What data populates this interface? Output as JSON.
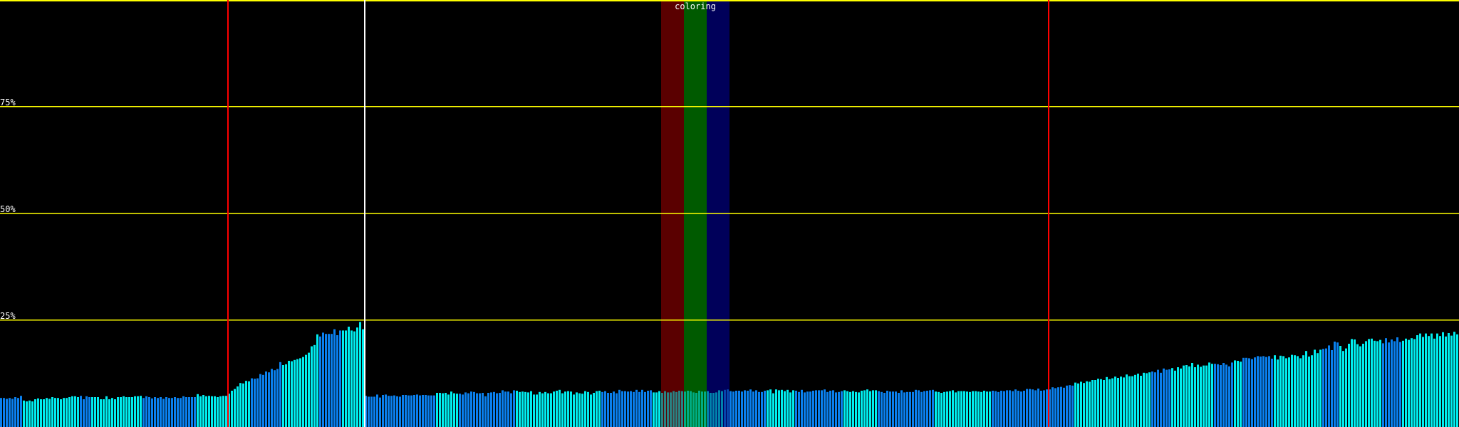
{
  "chart_data": {
    "type": "bar",
    "title": "",
    "ylim": [
      0,
      100
    ],
    "grid": true,
    "y_ticks": [
      {
        "value": 75,
        "label": "75%"
      },
      {
        "value": 50,
        "label": "50%"
      },
      {
        "value": 25,
        "label": "25%"
      }
    ],
    "annotation": {
      "label": "coloring",
      "band_colors": [
        "#5a0000",
        "#005a00",
        "#00005a"
      ],
      "bar_range": [
        232,
        256
      ]
    },
    "markers": [
      {
        "bar_index": 80,
        "color": "#ff0000"
      },
      {
        "bar_index": 128,
        "color": "#ffffff"
      },
      {
        "bar_index": 368,
        "color": "#ff0000"
      }
    ],
    "colors": {
      "cyan": "#00eef0",
      "blue": "#0a80ee",
      "grid": "#ffff00",
      "background": "#000000"
    },
    "color_runs": [
      [
        "blue",
        8
      ],
      [
        "cyan",
        20
      ],
      [
        "blue",
        4
      ],
      [
        "cyan",
        18
      ],
      [
        "blue",
        19
      ],
      [
        "cyan",
        11
      ],
      [
        "cyan",
        8
      ],
      [
        "blue",
        11
      ],
      [
        "cyan",
        13
      ],
      [
        "blue",
        8
      ],
      [
        "cyan",
        8
      ],
      [
        "blue",
        25
      ],
      [
        "cyan",
        8
      ],
      [
        "blue",
        20
      ],
      [
        "cyan",
        30
      ],
      [
        "blue",
        18
      ],
      [
        "cyan",
        25
      ],
      [
        "blue",
        15
      ],
      [
        "cyan",
        10
      ],
      [
        "blue",
        17
      ],
      [
        "cyan",
        12
      ],
      [
        "blue",
        20
      ],
      [
        "cyan",
        20
      ],
      [
        "blue",
        20
      ],
      [
        "blue",
        9
      ],
      [
        "cyan",
        27
      ],
      [
        "blue",
        7
      ],
      [
        "cyan",
        15
      ],
      [
        "blue",
        7
      ],
      [
        "cyan",
        3
      ],
      [
        "blue",
        11
      ],
      [
        "cyan",
        17
      ],
      [
        "blue",
        6
      ],
      [
        "cyan",
        15
      ],
      [
        "blue",
        7
      ],
      [
        "cyan",
        20
      ]
    ],
    "values": [
      6.8,
      6.8,
      6.6,
      6.8,
      6.6,
      7.0,
      6.8,
      7.3,
      6.2,
      6.0,
      6.2,
      6.0,
      6.5,
      6.7,
      6.5,
      6.5,
      6.8,
      6.6,
      7.0,
      6.8,
      6.8,
      6.5,
      6.8,
      6.8,
      7.0,
      7.2,
      7.2,
      7.0,
      7.3,
      6.5,
      7.2,
      7.0,
      7.0,
      7.0,
      7.0,
      6.5,
      6.5,
      7.2,
      6.5,
      6.8,
      6.5,
      7.0,
      7.0,
      7.2,
      7.0,
      7.0,
      7.0,
      7.2,
      7.2,
      7.3,
      6.8,
      7.2,
      7.0,
      6.7,
      7.0,
      6.8,
      7.0,
      6.6,
      7.0,
      6.8,
      6.8,
      7.0,
      6.8,
      6.8,
      7.2,
      7.0,
      7.0,
      7.0,
      7.0,
      7.7,
      7.2,
      7.5,
      7.2,
      7.3,
      7.2,
      7.2,
      7.0,
      7.2,
      7.3,
      7.3,
      7.8,
      8.5,
      8.9,
      9.5,
      10.3,
      10.2,
      10.8,
      10.7,
      11.4,
      11.3,
      11.4,
      12.4,
      12.2,
      13.0,
      12.8,
      13.6,
      13.3,
      13.6,
      15.2,
      14.5,
      14.7,
      15.5,
      15.4,
      15.7,
      15.9,
      16.1,
      16.4,
      16.9,
      17.4,
      18.9,
      19.2,
      21.7,
      21.2,
      22.1,
      21.8,
      21.8,
      21.8,
      22.9,
      21.5,
      22.6,
      22.6,
      22.6,
      23.5,
      22.6,
      22.4,
      23.3,
      24.6,
      22.9,
      7.3,
      7.1,
      7.1,
      7.1,
      7.6,
      6.9,
      7.5,
      7.6,
      7.3,
      7.3,
      7.4,
      7.2,
      7.1,
      7.5,
      7.5,
      7.4,
      7.4,
      7.5,
      7.6,
      7.4,
      7.5,
      7.5,
      7.4,
      7.4,
      7.4,
      8.0,
      8.0,
      7.9,
      8.0,
      7.6,
      8.3,
      7.9,
      7.8,
      7.8,
      7.6,
      8.1,
      7.9,
      8.3,
      8.2,
      7.9,
      7.9,
      8.0,
      7.2,
      8.0,
      8.1,
      8.2,
      7.9,
      8.0,
      8.6,
      8.3,
      8.3,
      7.9,
      8.6,
      8.5,
      8.2,
      8.3,
      8.2,
      8.1,
      8.4,
      7.6,
      7.6,
      8.2,
      7.9,
      8.2,
      7.9,
      7.9,
      8.3,
      8.5,
      8.7,
      7.9,
      8.3,
      8.4,
      8.3,
      7.6,
      8.1,
      7.9,
      7.8,
      8.4,
      8.2,
      7.6,
      8.0,
      8.4,
      8.5,
      8.2,
      8.4,
      8.0,
      8.0,
      8.3,
      7.9,
      8.7,
      8.4,
      8.4,
      8.3,
      8.4,
      8.2,
      8.7,
      8.2,
      8.7,
      8.2,
      8.5,
      8.6,
      8.1,
      8.1,
      8.4,
      8.0,
      8.4,
      8.1,
      8.1,
      8.4,
      8.2,
      8.5,
      8.4,
      8.3,
      8.5,
      8.4,
      8.1,
      8.0,
      8.5,
      8.3,
      8.3,
      8.4,
      8.0,
      8.0,
      8.1,
      8.6,
      8.4,
      8.7,
      8.8,
      8.4,
      8.3,
      8.5,
      8.5,
      8.3,
      8.6,
      8.5,
      8.8,
      8.3,
      8.6,
      8.2,
      8.2,
      8.5,
      8.6,
      8.8,
      7.9,
      8.8,
      8.6,
      8.7,
      8.4,
      8.7,
      8.1,
      8.6,
      8.5,
      8.2,
      8.7,
      8.1,
      8.3,
      8.3,
      8.5,
      8.6,
      8.6,
      8.6,
      8.8,
      8.2,
      8.5,
      8.6,
      8.1,
      8.2,
      8.4,
      8.6,
      8.4,
      8.2,
      8.4,
      8.2,
      8.1,
      8.5,
      8.6,
      8.8,
      8.4,
      8.6,
      8.6,
      8.4,
      8.2,
      8.0,
      8.5,
      8.3,
      8.3,
      8.3,
      8.0,
      8.6,
      8.1,
      8.2,
      8.2,
      8.2,
      8.7,
      8.6,
      8.2,
      8.4,
      8.5,
      8.6,
      8.7,
      8.3,
      8.2,
      8.0,
      8.2,
      8.3,
      8.4,
      8.6,
      8.1,
      8.4,
      8.4,
      8.4,
      8.3,
      8.2,
      8.4,
      8.4,
      8.3,
      8.2,
      8.5,
      8.3,
      8.3,
      8.5,
      8.4,
      8.2,
      8.5,
      8.4,
      8.6,
      8.6,
      8.4,
      8.8,
      8.5,
      8.3,
      8.5,
      8.9,
      8.9,
      8.8,
      8.6,
      9.0,
      8.5,
      8.6,
      8.8,
      8.8,
      9.3,
      9.1,
      9.3,
      9.4,
      9.2,
      9.7,
      9.8,
      9.7,
      10.4,
      10.2,
      10.6,
      10.3,
      10.7,
      10.6,
      11.0,
      11.0,
      11.3,
      11.2,
      11.0,
      11.7,
      11.2,
      11.4,
      11.8,
      11.5,
      11.8,
      11.6,
      12.3,
      11.9,
      11.9,
      12.2,
      12.5,
      12.0,
      12.7,
      12.6,
      12.8,
      13.0,
      12.8,
      13.4,
      12.7,
      13.7,
      13.4,
      13.5,
      13.8,
      13.2,
      14.0,
      13.7,
      14.4,
      14.5,
      14.2,
      15.0,
      14.0,
      14.6,
      14.1,
      14.4,
      14.4,
      15.1,
      14.8,
      14.8,
      14.7,
      14.5,
      15.0,
      14.6,
      14.2,
      15.1,
      15.6,
      15.5,
      15.3,
      16.2,
      16.2,
      16.1,
      15.9,
      16.3,
      16.6,
      16.5,
      16.6,
      16.4,
      16.6,
      16.0,
      16.8,
      15.8,
      16.7,
      16.6,
      16.1,
      16.3,
      16.9,
      16.8,
      16.6,
      16.1,
      16.8,
      17.8,
      16.5,
      16.8,
      18.1,
      17.3,
      18.1,
      18.3,
      18.4,
      19.1,
      18.0,
      20.0,
      19.8,
      19.0,
      17.8,
      18.4,
      19.5,
      20.6,
      20.5,
      19.4,
      18.9,
      19.5,
      20.1,
      20.6,
      20.7,
      20.2,
      20.1,
      20.4,
      19.6,
      20.8,
      19.8,
      20.5,
      20.1,
      21.0,
      19.9,
      20.2,
      20.7,
      20.4,
      20.8,
      20.6,
      21.5,
      21.9,
      21.1,
      21.9,
      21.3,
      21.9,
      20.7,
      21.9,
      21.3,
      22.2,
      21.2,
      22.0,
      21.4,
      22.3,
      21.7
    ]
  }
}
